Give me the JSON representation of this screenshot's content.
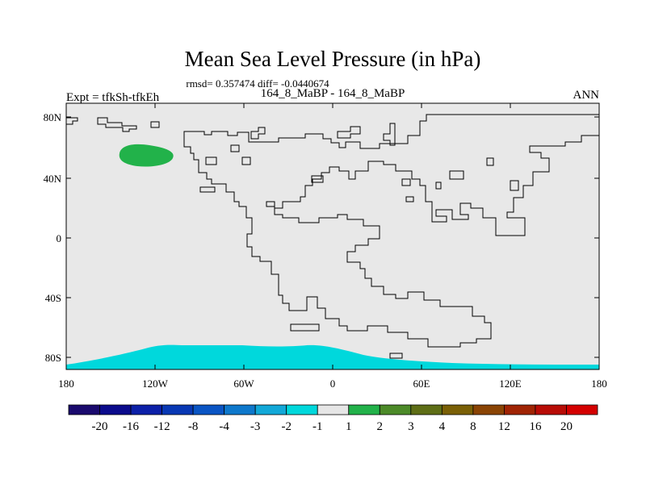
{
  "title": "Mean Sea Level Pressure (in hPa)",
  "stats": "rmsd= 0.357474 diff= -0.0440674",
  "left_label": "Expt = tfkSh-tfkEh",
  "center_label": "164_8_MaBP - 164_8_MaBP",
  "right_label": "ANN",
  "map": {
    "lat_ticks": [
      "80N",
      "40N",
      "0",
      "40S",
      "80S"
    ],
    "lon_ticks": [
      "180",
      "120W",
      "60W",
      "0",
      "60E",
      "120E",
      "180"
    ],
    "colors": {
      "background": "#e8e8e8",
      "anomaly_green": "#22b24a",
      "anomaly_cyan": "#00d8dc",
      "coastline": "#000000"
    }
  },
  "colorbar": {
    "labels": [
      "-20",
      "-16",
      "-12",
      "-8",
      "-4",
      "-3",
      "-2",
      "-1",
      "1",
      "2",
      "3",
      "4",
      "8",
      "12",
      "16",
      "20"
    ],
    "colors": [
      "#1a0a6e",
      "#0b0b8c",
      "#0c20a8",
      "#0838b4",
      "#0a55c4",
      "#0e78cc",
      "#12a8d8",
      "#00d8dc",
      "#e6e6e6",
      "#22b24a",
      "#4c8a28",
      "#5e6e16",
      "#7a6006",
      "#8a4404",
      "#a02404",
      "#b80c06",
      "#d40000"
    ]
  }
}
